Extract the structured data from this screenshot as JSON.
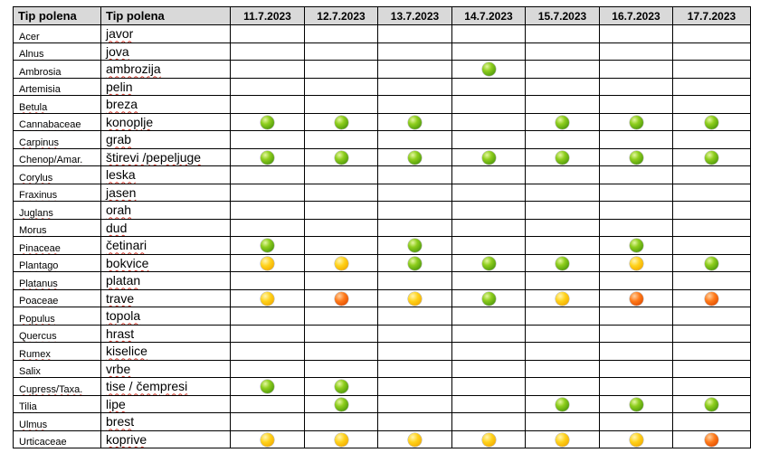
{
  "header": {
    "latin_label": "Tip polena",
    "local_label": "Tip polena",
    "dates": [
      "11.7.2023",
      "12.7.2023",
      "13.7.2023",
      "14.7.2023",
      "15.7.2023",
      "16.7.2023",
      "17.7.2023"
    ]
  },
  "colors": {
    "green": "#6cb814",
    "yellow": "#ffc000",
    "orange": "#ff5a00"
  },
  "rows": [
    {
      "latin": "Acer",
      "local": "javor",
      "latin_underlined": false,
      "levels": [
        "",
        "",
        "",
        "",
        "",
        "",
        ""
      ]
    },
    {
      "latin": "Alnus",
      "local": "jova",
      "latin_underlined": true,
      "levels": [
        "",
        "",
        "",
        "",
        "",
        "",
        ""
      ]
    },
    {
      "latin": "Ambrosia",
      "local": "ambrozija",
      "latin_underlined": false,
      "levels": [
        "",
        "",
        "",
        "green",
        "",
        "",
        ""
      ]
    },
    {
      "latin": "Artemisia",
      "local": "pelin",
      "latin_underlined": false,
      "levels": [
        "",
        "",
        "",
        "",
        "",
        "",
        ""
      ]
    },
    {
      "latin": "Betula",
      "local": "breza",
      "latin_underlined": true,
      "levels": [
        "",
        "",
        "",
        "",
        "",
        "",
        ""
      ]
    },
    {
      "latin": "Cannabaceae",
      "local": "konoplje",
      "latin_underlined": true,
      "levels": [
        "green",
        "green",
        "green",
        "",
        "green",
        "green",
        "green"
      ]
    },
    {
      "latin": "Carpinus",
      "local": "grab",
      "latin_underlined": true,
      "levels": [
        "",
        "",
        "",
        "",
        "",
        "",
        ""
      ]
    },
    {
      "latin": "Chenop/Amar.",
      "local": "štirevi /pepeljuge",
      "latin_underlined": true,
      "levels": [
        "green",
        "green",
        "green",
        "green",
        "green",
        "green",
        "green"
      ]
    },
    {
      "latin": "Corylus",
      "local": "leska",
      "latin_underlined": true,
      "levels": [
        "",
        "",
        "",
        "",
        "",
        "",
        ""
      ]
    },
    {
      "latin": "Fraxinus",
      "local": "jasen",
      "latin_underlined": true,
      "levels": [
        "",
        "",
        "",
        "",
        "",
        "",
        ""
      ]
    },
    {
      "latin": "Juglans",
      "local": "orah",
      "latin_underlined": true,
      "levels": [
        "",
        "",
        "",
        "",
        "",
        "",
        ""
      ]
    },
    {
      "latin": "Morus",
      "local": "dud",
      "latin_underlined": true,
      "levels": [
        "",
        "",
        "",
        "",
        "",
        "",
        ""
      ]
    },
    {
      "latin": "Pinaceae",
      "local": "četinari",
      "latin_underlined": true,
      "levels": [
        "green",
        "",
        "green",
        "",
        "",
        "green",
        ""
      ]
    },
    {
      "latin": "Plantago",
      "local": "bokvice",
      "latin_underlined": true,
      "levels": [
        "yellow",
        "yellow",
        "green",
        "green",
        "green",
        "yellow",
        "green"
      ]
    },
    {
      "latin": "Platanus",
      "local": "platan",
      "latin_underlined": true,
      "levels": [
        "",
        "",
        "",
        "",
        "",
        "",
        ""
      ]
    },
    {
      "latin": "Poaceae",
      "local": "trave",
      "latin_underlined": true,
      "levels": [
        "yellow",
        "orange",
        "yellow",
        "green",
        "yellow",
        "orange",
        "orange"
      ]
    },
    {
      "latin": "Populus",
      "local": "topola",
      "latin_underlined": true,
      "levels": [
        "",
        "",
        "",
        "",
        "",
        "",
        ""
      ]
    },
    {
      "latin": "Quercus",
      "local": "hrast",
      "latin_underlined": true,
      "levels": [
        "",
        "",
        "",
        "",
        "",
        "",
        ""
      ]
    },
    {
      "latin": "Rumex",
      "local": "kiselice",
      "latin_underlined": true,
      "levels": [
        "",
        "",
        "",
        "",
        "",
        "",
        ""
      ]
    },
    {
      "latin": "Salix",
      "local": "vrbe",
      "latin_underlined": false,
      "levels": [
        "",
        "",
        "",
        "",
        "",
        "",
        ""
      ]
    },
    {
      "latin": "Cupress/Taxa.",
      "local": "tise / čempresi",
      "latin_underlined": true,
      "levels": [
        "green",
        "green",
        "",
        "",
        "",
        "",
        ""
      ]
    },
    {
      "latin": "Tilia",
      "local": "lipe",
      "latin_underlined": true,
      "levels": [
        "",
        "green",
        "",
        "",
        "green",
        "green",
        "green"
      ]
    },
    {
      "latin": "Ulmus",
      "local": "brest",
      "latin_underlined": true,
      "levels": [
        "",
        "",
        "",
        "",
        "",
        "",
        ""
      ]
    },
    {
      "latin": "Urticaceae",
      "local": "koprive",
      "latin_underlined": true,
      "levels": [
        "yellow",
        "yellow",
        "yellow",
        "yellow",
        "yellow",
        "yellow",
        "orange"
      ]
    }
  ]
}
